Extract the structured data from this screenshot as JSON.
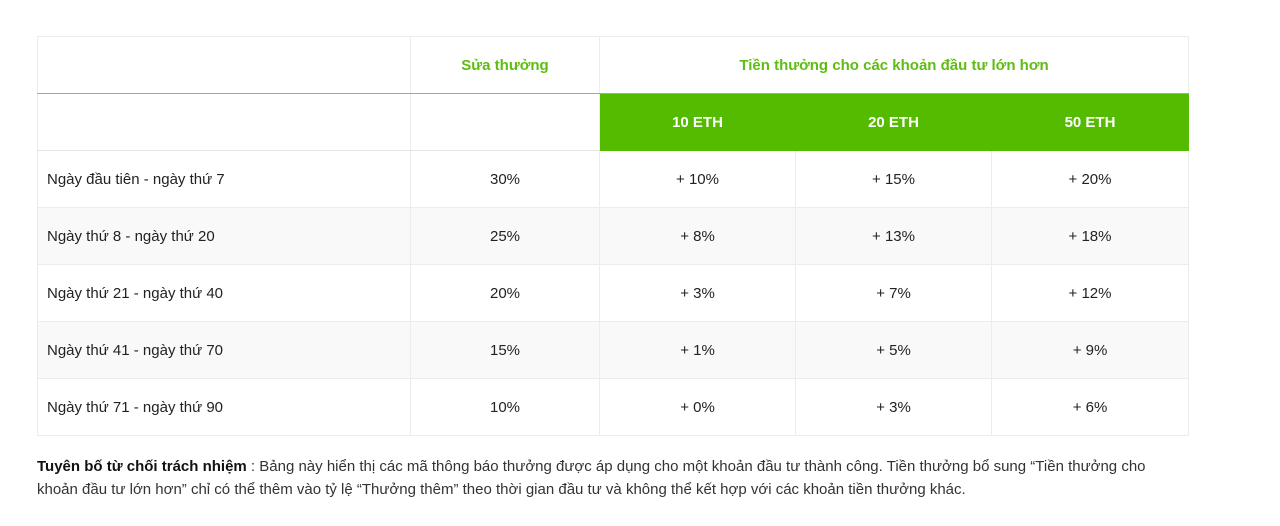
{
  "table": {
    "header": {
      "empty_label": "",
      "base_bonus": "Sửa thưởng",
      "extra_bonus": "Tiền thưởng cho các khoản đầu tư lớn hơn",
      "tiers": [
        "10 ETH",
        "20 ETH",
        "50 ETH"
      ]
    },
    "rows": [
      {
        "period": "Ngày đầu tiên - ngày thứ 7",
        "base": "30%",
        "t10": "+ 10%",
        "t20": "+ 15%",
        "t50": "+ 20%"
      },
      {
        "period": "Ngày thứ 8 - ngày thứ 20",
        "base": "25%",
        "t10": "+ 8%",
        "t20": "+ 13%",
        "t50": "+ 18%"
      },
      {
        "period": "Ngày thứ 21 - ngày thứ 40",
        "base": "20%",
        "t10": "+ 3%",
        "t20": "+ 7%",
        "t50": "+ 12%"
      },
      {
        "period": "Ngày thứ 41 - ngày thứ 70",
        "base": "15%",
        "t10": "+ 1%",
        "t20": "+ 5%",
        "t50": "+ 9%"
      },
      {
        "period": "Ngày thứ 71 - ngày thứ 90",
        "base": "10%",
        "t10": "+ 0%",
        "t20": "+ 3%",
        "t50": "+ 6%"
      }
    ]
  },
  "disclaimer": {
    "title": "Tuyên bố từ chối trách nhiệm",
    "text": " : Bảng này hiển thị các mã thông báo thưởng được áp dụng cho một khoản đầu tư thành công. Tiền thưởng bổ sung “Tiền thưởng cho khoản đầu tư lớn hơn” chỉ có thể thêm vào tỷ lệ “Thưởng thêm” theo thời gian đầu tư và không thể kết hợp với các khoản tiền thưởng khác."
  },
  "colors": {
    "accent_green": "#54bb00",
    "header_text_green": "#5ebd10"
  }
}
